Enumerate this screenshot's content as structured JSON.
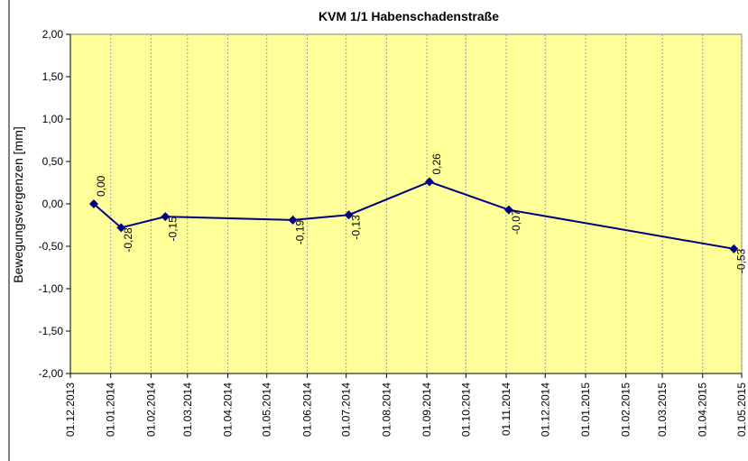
{
  "chart_data": {
    "type": "line",
    "title": "KVM 1/1 Habenschadenstraße",
    "y_label": "Bewegungsvergenzen [mm]",
    "x": [
      "2013-12-19",
      "2014-01-09",
      "2014-02-12",
      "2014-05-21",
      "2014-07-03",
      "2014-09-03",
      "2014-11-03",
      "2015-04-25"
    ],
    "series": [
      {
        "name": "KVM 1/1",
        "color": "#000080",
        "values": [
          0.0,
          -0.28,
          -0.15,
          -0.19,
          -0.13,
          0.26,
          -0.07,
          -0.53
        ],
        "value_labels": [
          "0,00",
          "-0,28",
          "-0,15",
          "-0,19",
          "-0,13",
          "0,26",
          "-0,07",
          "-0,53"
        ]
      }
    ],
    "xlim": [
      "2013-12-01",
      "2015-05-01"
    ],
    "xticks": [
      {
        "value": "2013-12-01",
        "label": "01.12.2013"
      },
      {
        "value": "2014-01-01",
        "label": "01.01.2014"
      },
      {
        "value": "2014-02-01",
        "label": "01.02.2014"
      },
      {
        "value": "2014-03-01",
        "label": "01.03.2014"
      },
      {
        "value": "2014-04-01",
        "label": "01.04.2014"
      },
      {
        "value": "2014-05-01",
        "label": "01.05.2014"
      },
      {
        "value": "2014-06-01",
        "label": "01.06.2014"
      },
      {
        "value": "2014-07-01",
        "label": "01.07.2014"
      },
      {
        "value": "2014-08-01",
        "label": "01.08.2014"
      },
      {
        "value": "2014-09-01",
        "label": "01.09.2014"
      },
      {
        "value": "2014-10-01",
        "label": "01.10.2014"
      },
      {
        "value": "2014-11-01",
        "label": "01.11.2014"
      },
      {
        "value": "2014-12-01",
        "label": "01.12.2014"
      },
      {
        "value": "2015-01-01",
        "label": "01.01.2015"
      },
      {
        "value": "2015-02-01",
        "label": "01.02.2015"
      },
      {
        "value": "2015-03-01",
        "label": "01.03.2015"
      },
      {
        "value": "2015-04-01",
        "label": "01.04.2015"
      },
      {
        "value": "2015-05-01",
        "label": "01.05.2015"
      }
    ],
    "ylim": [
      -2,
      2
    ],
    "yticks": [
      {
        "value": -2,
        "label": "-2,00"
      },
      {
        "value": -1.5,
        "label": "-1,50"
      },
      {
        "value": -1,
        "label": "-1,00"
      },
      {
        "value": -0.5,
        "label": "-0,50"
      },
      {
        "value": 0,
        "label": "0,00"
      },
      {
        "value": 0.5,
        "label": "0,50"
      },
      {
        "value": 1,
        "label": "1,00"
      },
      {
        "value": 1.5,
        "label": "1,50"
      },
      {
        "value": 2,
        "label": "2,00"
      }
    ],
    "grid": true,
    "plot_background": "#ffff99"
  }
}
